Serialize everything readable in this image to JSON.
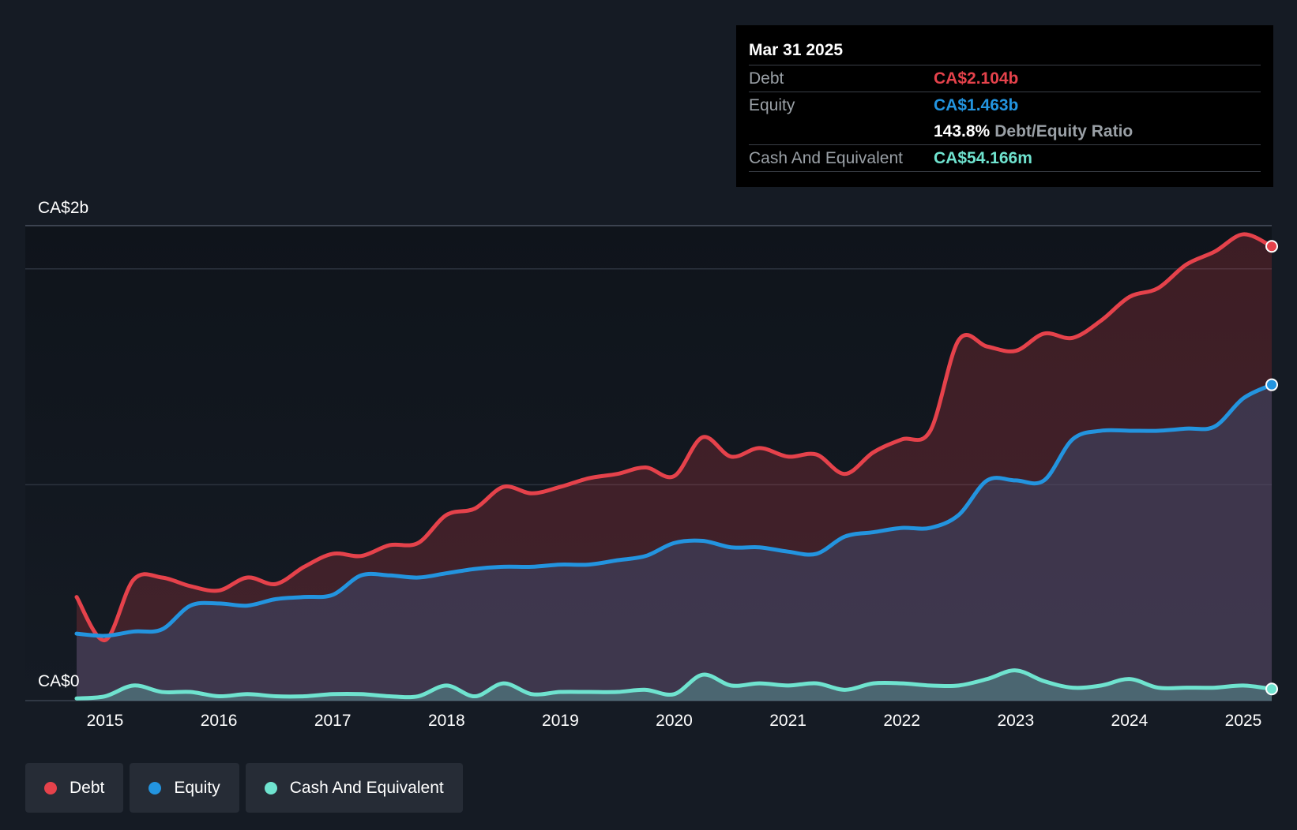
{
  "tooltip": {
    "date": "Mar 31 2025",
    "debt_label": "Debt",
    "debt_value": "CA$2.104b",
    "equity_label": "Equity",
    "equity_value": "CA$1.463b",
    "ratio_value": "143.8%",
    "ratio_label": "Debt/Equity Ratio",
    "cash_label": "Cash And Equivalent",
    "cash_value": "CA$54.166m"
  },
  "legend": {
    "debt": "Debt",
    "equity": "Equity",
    "cash": "Cash And Equivalent"
  },
  "colors": {
    "debt": "#e5424b",
    "equity": "#2394df",
    "cash": "#6fe3cf",
    "background": "#151b24"
  },
  "chart_data": {
    "type": "area",
    "title": "",
    "xlabel": "",
    "ylabel": "",
    "y_top_label": "CA$2b",
    "y_bottom_label": "CA$0",
    "ylim": [
      0,
      2.2
    ],
    "xlim": [
      2014.75,
      2025.25
    ],
    "x_ticks": [
      "2015",
      "2016",
      "2017",
      "2018",
      "2019",
      "2020",
      "2021",
      "2022",
      "2023",
      "2024",
      "2025"
    ],
    "x": [
      2014.75,
      2015.0,
      2015.25,
      2015.5,
      2015.75,
      2016.0,
      2016.25,
      2016.5,
      2016.75,
      2017.0,
      2017.25,
      2017.5,
      2017.75,
      2018.0,
      2018.25,
      2018.5,
      2018.75,
      2019.0,
      2019.25,
      2019.5,
      2019.75,
      2020.0,
      2020.25,
      2020.5,
      2020.75,
      2021.0,
      2021.25,
      2021.5,
      2021.75,
      2022.0,
      2022.25,
      2022.5,
      2022.75,
      2023.0,
      2023.25,
      2023.5,
      2023.75,
      2024.0,
      2024.25,
      2024.5,
      2024.75,
      2025.0,
      2025.25
    ],
    "series": [
      {
        "name": "Debt",
        "values": [
          0.48,
          0.28,
          0.56,
          0.57,
          0.53,
          0.51,
          0.57,
          0.54,
          0.62,
          0.68,
          0.67,
          0.72,
          0.73,
          0.86,
          0.89,
          0.99,
          0.96,
          0.99,
          1.03,
          1.05,
          1.08,
          1.04,
          1.22,
          1.13,
          1.17,
          1.13,
          1.14,
          1.05,
          1.15,
          1.21,
          1.25,
          1.67,
          1.64,
          1.62,
          1.7,
          1.68,
          1.76,
          1.87,
          1.91,
          2.02,
          2.08,
          2.16,
          2.104
        ]
      },
      {
        "name": "Equity",
        "values": [
          0.31,
          0.3,
          0.32,
          0.33,
          0.44,
          0.45,
          0.44,
          0.47,
          0.48,
          0.49,
          0.58,
          0.58,
          0.57,
          0.59,
          0.61,
          0.62,
          0.62,
          0.63,
          0.63,
          0.65,
          0.67,
          0.73,
          0.74,
          0.71,
          0.71,
          0.69,
          0.68,
          0.76,
          0.78,
          0.8,
          0.8,
          0.86,
          1.02,
          1.02,
          1.02,
          1.21,
          1.25,
          1.25,
          1.25,
          1.26,
          1.27,
          1.4,
          1.463
        ]
      },
      {
        "name": "Cash And Equivalent",
        "values": [
          0.01,
          0.02,
          0.07,
          0.04,
          0.04,
          0.02,
          0.03,
          0.02,
          0.02,
          0.03,
          0.03,
          0.02,
          0.02,
          0.07,
          0.02,
          0.08,
          0.03,
          0.04,
          0.04,
          0.04,
          0.05,
          0.03,
          0.12,
          0.07,
          0.08,
          0.07,
          0.08,
          0.05,
          0.08,
          0.08,
          0.07,
          0.07,
          0.1,
          0.14,
          0.09,
          0.06,
          0.07,
          0.1,
          0.06,
          0.06,
          0.06,
          0.07,
          0.054
        ]
      }
    ]
  }
}
